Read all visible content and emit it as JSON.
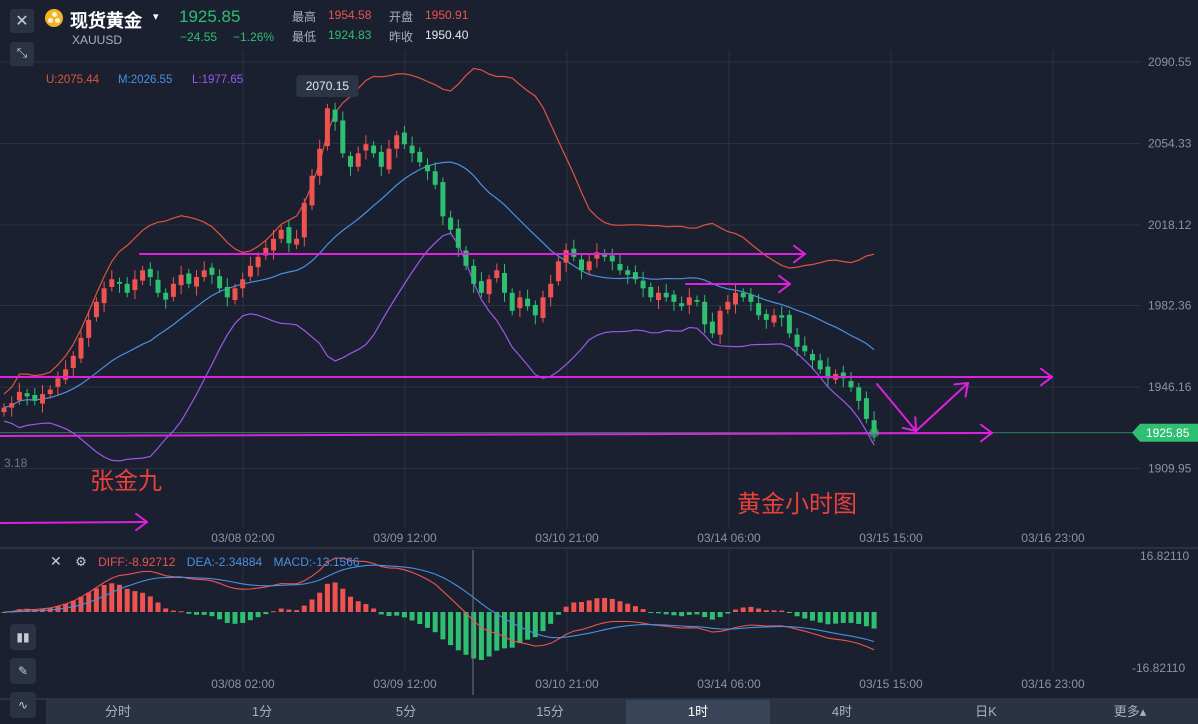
{
  "header": {
    "close_icon": "close-icon",
    "collapse_icon": "collapse-arrows-icon",
    "instrument_name": "现货黄金",
    "symbol": "XAUUSD",
    "last_price": "1925.85",
    "change": "−24.55",
    "change_pct": "−1.26%",
    "high_label": "最高",
    "high_value": "1954.58",
    "open_label": "开盘",
    "open_value": "1950.91",
    "low_label": "最低",
    "low_value": "1924.83",
    "prev_close_label": "昨收",
    "prev_close_value": "1950.40"
  },
  "indicators": {
    "upper": "U:2075.44",
    "middle": "M:2026.55",
    "lower": "L:1977.65"
  },
  "macd_header": {
    "diff": "DIFF:-8.92712",
    "dea": "DEA:-2.34884",
    "macd": "MACD:-13.1566"
  },
  "annotations": {
    "peak_label": "2070.15",
    "author": "张金九",
    "caption": "黄金小时图",
    "left_edge_price": "3.18"
  },
  "timeframe_tabs": [
    "分时",
    "1分",
    "5分",
    "15分",
    "1时",
    "4时",
    "日K",
    "更多▴"
  ],
  "active_tab_index": 4,
  "colors": {
    "background": "#1a2030",
    "up": "#ef5350",
    "down": "#2fbf71",
    "upper_band": "#e0533f",
    "middle_band": "#4a90e2",
    "lower_band": "#9b59e8",
    "drawing": "#e020e0"
  },
  "chart_data": {
    "type": "candlestick",
    "y_axis_labels": [
      "2090.55",
      "2054.33",
      "2018.12",
      "1982.36",
      "1946.16",
      "1909.95"
    ],
    "ylim": [
      1890,
      2096
    ],
    "current_price_label": "1925.85",
    "x_tick_labels": [
      "03/08 02:00",
      "03/09 12:00",
      "03/10 21:00",
      "03/14 06:00",
      "03/15 15:00",
      "03/16 23:00"
    ],
    "price_path": [
      1937,
      1939,
      1944,
      1942,
      1940,
      1943,
      1945,
      1950,
      1954,
      1960,
      1968,
      1976,
      1984,
      1990,
      1994,
      1992,
      1988,
      1994,
      1998,
      1995,
      1988,
      1985,
      1992,
      1996,
      1992,
      1995,
      1998,
      1996,
      1990,
      1986,
      1990,
      1994,
      2000,
      2004,
      2008,
      2012,
      2016,
      2010,
      2012,
      2028,
      2040,
      2052,
      2070,
      2064,
      2050,
      2044,
      2050,
      2054,
      2050,
      2044,
      2052,
      2058,
      2054,
      2050,
      2046,
      2042,
      2036,
      2022,
      2016,
      2008,
      2000,
      1992,
      1988,
      1994,
      1998,
      1988,
      1980,
      1986,
      1982,
      1978,
      1986,
      1992,
      2002,
      2007,
      2004,
      1998,
      2002,
      2006,
      2004,
      2002,
      1998,
      1996,
      1994,
      1990,
      1986,
      1988,
      1986,
      1984,
      1982,
      1986,
      1984,
      1974,
      1970,
      1980,
      1984,
      1988,
      1986,
      1984,
      1978,
      1976,
      1978,
      1977,
      1970,
      1964,
      1962,
      1958,
      1954,
      1950,
      1952,
      1950,
      1946,
      1940,
      1932,
      1925.85
    ],
    "bollinger": {
      "upper": "U:2075.44",
      "middle": "M:2026.55",
      "lower": "L:1977.65"
    },
    "macd": {
      "ylim": [
        -16.8211,
        16.8211
      ],
      "y_axis_labels": [
        "16.82110",
        "-16.82110"
      ],
      "diff": -8.92712,
      "dea": -2.34884,
      "macd": -13.1566
    }
  }
}
